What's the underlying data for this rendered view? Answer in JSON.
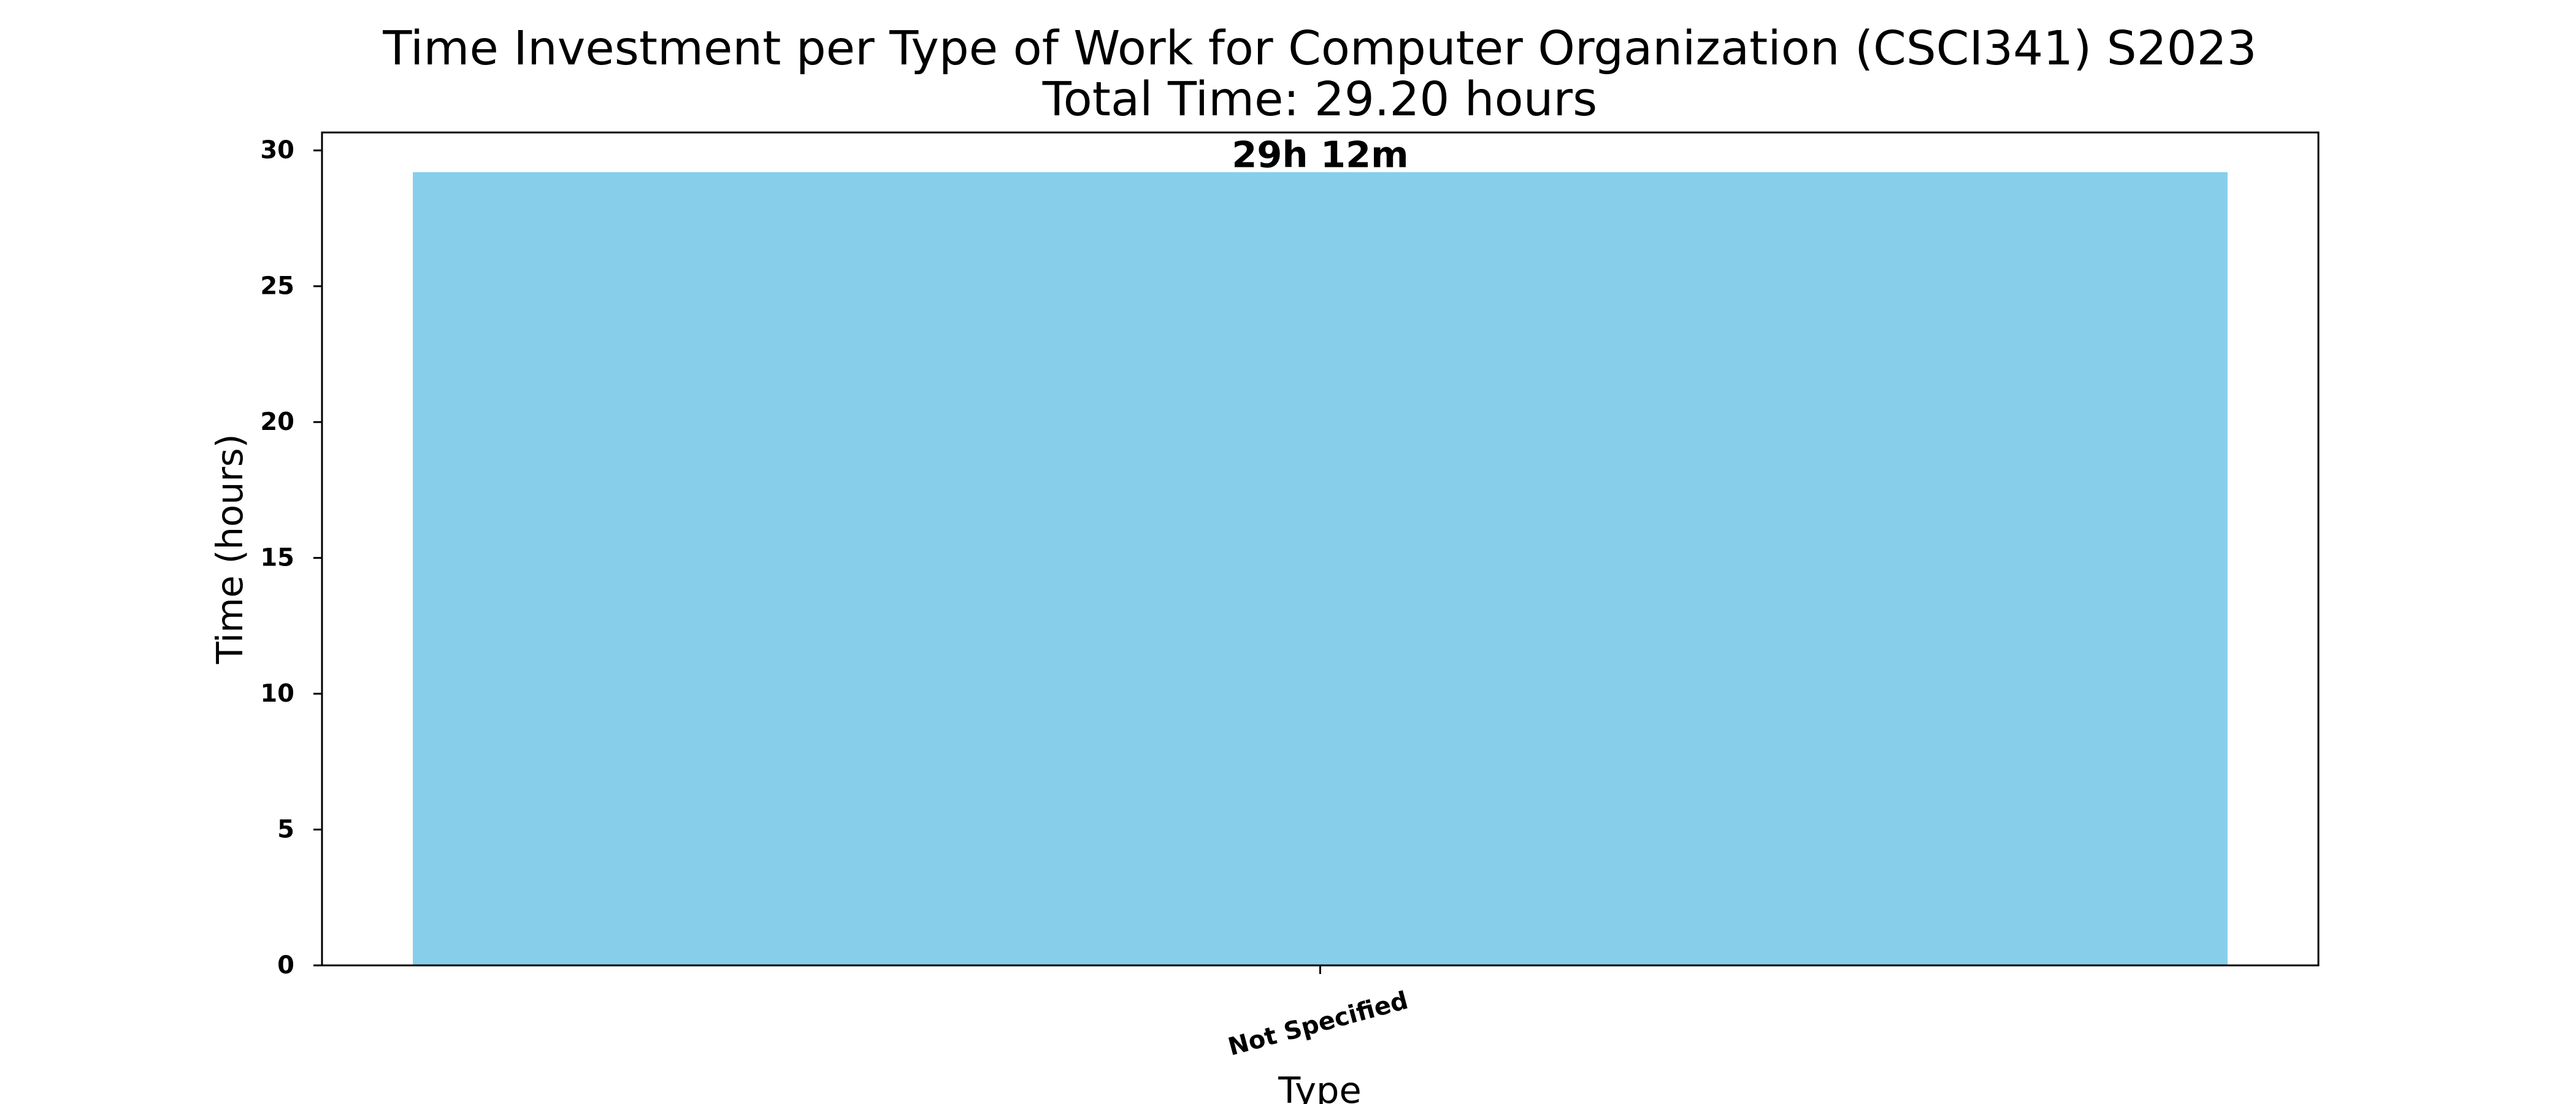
{
  "chart_data": {
    "type": "bar",
    "title": "Time Investment per Type of Work for Computer Organization (CSCI341) S2023",
    "subtitle": "Total Time: 29.20 hours",
    "xlabel": "Type",
    "ylabel": "Time (hours)",
    "categories": [
      "Not Specified"
    ],
    "values": [
      29.2
    ],
    "data_labels": [
      "29h 12m"
    ],
    "ylim": [
      0,
      30.66
    ],
    "yticks": [
      0,
      5,
      10,
      15,
      20,
      25,
      30
    ],
    "ytick_labels": [
      "0",
      "5",
      "10",
      "15",
      "20",
      "25",
      "30"
    ],
    "bar_color": "#87CEEB",
    "grid": false,
    "legend": false
  }
}
